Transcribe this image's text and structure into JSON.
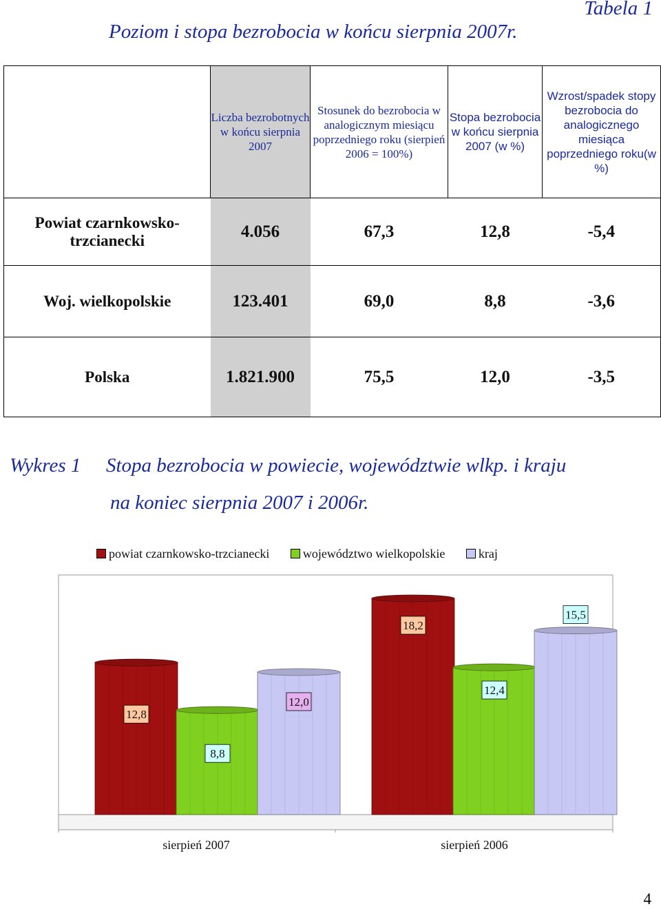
{
  "tabela_label": "Tabela 1",
  "doc_title": "Poziom i stopa bezrobocia w końcu sierpnia 2007r.",
  "table": {
    "headers": [
      "Liczba bezrobotnych w końcu sierpnia 2007",
      "Stosunek do bezrobocia w analogicznym miesiącu poprzedniego roku (sierpień 2006 = 100%)",
      "Stopa bezrobocia w końcu sierpnia 2007 (w %)",
      "Wzrost/spadek stopy bezrobocia do analogicznego miesiąca poprzedniego roku(w %)"
    ],
    "rows": [
      {
        "label": "Powiat czarnkowsko-trzcianecki",
        "values": [
          "4.056",
          "67,3",
          "12,8",
          "-5,4"
        ]
      },
      {
        "label": "Woj. wielkopolskie",
        "values": [
          "123.401",
          "69,0",
          "8,8",
          "-3,6"
        ]
      },
      {
        "label": "Polska",
        "values": [
          "1.821.900",
          "75,5",
          "12,0",
          "-3,5"
        ]
      }
    ]
  },
  "chart_heading": {
    "number": "Wykres 1",
    "title": "Stopa bezrobocia w powiecie, województwie wlkp. i kraju",
    "subtitle": "na koniec sierpnia 2007 i 2006r."
  },
  "chart_data": {
    "type": "bar",
    "categories": [
      "sierpień 2007",
      "sierpień 2006"
    ],
    "series": [
      {
        "name": "powiat czarnkowsko-trzcianecki",
        "color": "#a01010",
        "values": [
          12.8,
          18.2
        ],
        "labels": [
          "12,8",
          "18,2"
        ],
        "label_bg": [
          "#ffc8a0",
          "#ffc8a0"
        ]
      },
      {
        "name": "województwo wielkopolskie",
        "color": "#80d020",
        "values": [
          8.8,
          12.4
        ],
        "labels": [
          "8,8",
          "12,4"
        ],
        "label_bg": [
          "#ccffff",
          "#ccffff"
        ]
      },
      {
        "name": "kraj",
        "color": "#c8c8f4",
        "values": [
          12.0,
          15.5
        ],
        "labels": [
          "12,0",
          "15,5"
        ],
        "label_bg": [
          "#e6b0f0",
          "#ccffff"
        ]
      }
    ],
    "ylim": [
      0,
      20
    ],
    "grid": false,
    "legend": "top"
  },
  "page_number": "4"
}
